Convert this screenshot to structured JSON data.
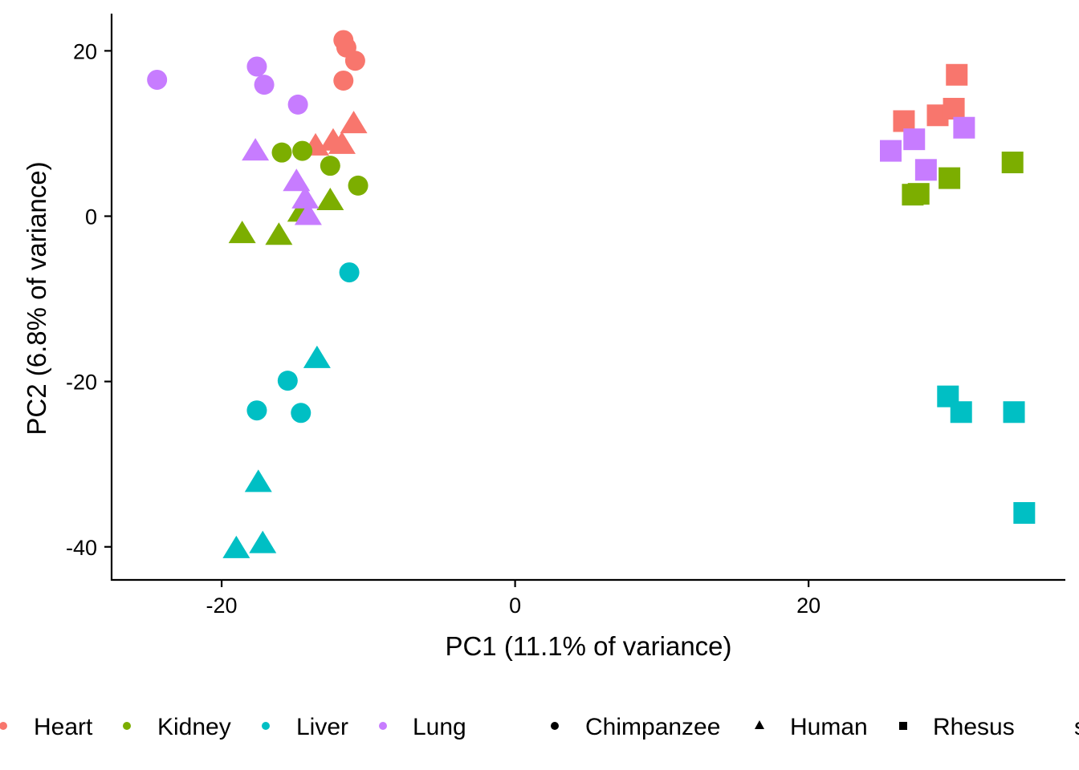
{
  "chart_data": {
    "type": "scatter",
    "xlabel": "PC1 (11.1% of variance)",
    "ylabel": "PC2 (6.8% of variance)",
    "xlim": [
      -27.5,
      37.5
    ],
    "ylim": [
      -44,
      24.5
    ],
    "x_ticks": [
      -20,
      0,
      20
    ],
    "y_ticks": [
      20,
      0,
      -20,
      -40
    ],
    "x_tick_labels": [
      "-20",
      "0",
      "20"
    ],
    "y_tick_labels": [
      "20",
      "0",
      "-20",
      "-40"
    ],
    "grid": false,
    "legend_position": "bottom",
    "tissues": [
      {
        "name": "Heart",
        "color": "#F8766D"
      },
      {
        "name": "Kidney",
        "color": "#7CAE00"
      },
      {
        "name": "Liver",
        "color": "#00BFC4"
      },
      {
        "name": "Lung",
        "color": "#C77CFF"
      }
    ],
    "species": [
      {
        "name": "Chimpanzee",
        "shape": "circle"
      },
      {
        "name": "Human",
        "shape": "triangle"
      },
      {
        "name": "Rhesus",
        "shape": "square"
      }
    ],
    "legend_trailing_text": "s",
    "points": [
      {
        "x": -11.7,
        "y": 21.3,
        "tissue": "Heart",
        "species": "Chimpanzee"
      },
      {
        "x": -11.5,
        "y": 20.4,
        "tissue": "Heart",
        "species": "Chimpanzee"
      },
      {
        "x": -10.9,
        "y": 18.8,
        "tissue": "Heart",
        "species": "Chimpanzee"
      },
      {
        "x": -11.7,
        "y": 16.4,
        "tissue": "Heart",
        "species": "Chimpanzee"
      },
      {
        "x": -13.6,
        "y": 8.4,
        "tissue": "Heart",
        "species": "Human"
      },
      {
        "x": -12.4,
        "y": 9.0,
        "tissue": "Heart",
        "species": "Human"
      },
      {
        "x": -11.8,
        "y": 8.6,
        "tissue": "Heart",
        "species": "Human"
      },
      {
        "x": -11.0,
        "y": 11.1,
        "tissue": "Heart",
        "species": "Human"
      },
      {
        "x": 26.5,
        "y": 11.5,
        "tissue": "Heart",
        "species": "Rhesus"
      },
      {
        "x": 28.8,
        "y": 12.2,
        "tissue": "Heart",
        "species": "Rhesus"
      },
      {
        "x": 29.9,
        "y": 13.0,
        "tissue": "Heart",
        "species": "Rhesus"
      },
      {
        "x": 30.1,
        "y": 17.1,
        "tissue": "Heart",
        "species": "Rhesus"
      },
      {
        "x": -15.9,
        "y": 7.7,
        "tissue": "Kidney",
        "species": "Chimpanzee"
      },
      {
        "x": -14.5,
        "y": 7.9,
        "tissue": "Kidney",
        "species": "Chimpanzee"
      },
      {
        "x": -12.6,
        "y": 6.1,
        "tissue": "Kidney",
        "species": "Chimpanzee"
      },
      {
        "x": -10.7,
        "y": 3.7,
        "tissue": "Kidney",
        "species": "Chimpanzee"
      },
      {
        "x": -18.6,
        "y": -2.2,
        "tissue": "Kidney",
        "species": "Human"
      },
      {
        "x": -16.1,
        "y": -2.4,
        "tissue": "Kidney",
        "species": "Human"
      },
      {
        "x": -14.6,
        "y": 0.4,
        "tissue": "Kidney",
        "species": "Human"
      },
      {
        "x": -12.6,
        "y": 1.8,
        "tissue": "Kidney",
        "species": "Human"
      },
      {
        "x": 27.1,
        "y": 2.6,
        "tissue": "Kidney",
        "species": "Rhesus"
      },
      {
        "x": 27.5,
        "y": 2.7,
        "tissue": "Kidney",
        "species": "Rhesus"
      },
      {
        "x": 29.6,
        "y": 4.6,
        "tissue": "Kidney",
        "species": "Rhesus"
      },
      {
        "x": 33.9,
        "y": 6.5,
        "tissue": "Kidney",
        "species": "Rhesus"
      },
      {
        "x": -11.3,
        "y": -6.8,
        "tissue": "Liver",
        "species": "Chimpanzee"
      },
      {
        "x": -15.5,
        "y": -19.9,
        "tissue": "Liver",
        "species": "Chimpanzee"
      },
      {
        "x": -17.6,
        "y": -23.5,
        "tissue": "Liver",
        "species": "Chimpanzee"
      },
      {
        "x": -14.6,
        "y": -23.8,
        "tissue": "Liver",
        "species": "Chimpanzee"
      },
      {
        "x": -13.5,
        "y": -17.3,
        "tissue": "Liver",
        "species": "Human"
      },
      {
        "x": -17.5,
        "y": -32.3,
        "tissue": "Liver",
        "species": "Human"
      },
      {
        "x": -17.2,
        "y": -39.7,
        "tissue": "Liver",
        "species": "Human"
      },
      {
        "x": -19.0,
        "y": -40.3,
        "tissue": "Liver",
        "species": "Human"
      },
      {
        "x": 29.5,
        "y": -21.8,
        "tissue": "Liver",
        "species": "Rhesus"
      },
      {
        "x": 30.4,
        "y": -23.7,
        "tissue": "Liver",
        "species": "Rhesus"
      },
      {
        "x": 34.0,
        "y": -23.7,
        "tissue": "Liver",
        "species": "Rhesus"
      },
      {
        "x": 34.7,
        "y": -35.9,
        "tissue": "Liver",
        "species": "Rhesus"
      },
      {
        "x": -24.4,
        "y": 16.5,
        "tissue": "Lung",
        "species": "Chimpanzee"
      },
      {
        "x": -17.6,
        "y": 18.1,
        "tissue": "Lung",
        "species": "Chimpanzee"
      },
      {
        "x": -17.1,
        "y": 15.9,
        "tissue": "Lung",
        "species": "Chimpanzee"
      },
      {
        "x": -14.8,
        "y": 13.5,
        "tissue": "Lung",
        "species": "Chimpanzee"
      },
      {
        "x": -17.7,
        "y": 7.8,
        "tissue": "Lung",
        "species": "Human"
      },
      {
        "x": -14.9,
        "y": 4.1,
        "tissue": "Lung",
        "species": "Human"
      },
      {
        "x": -14.3,
        "y": 2.0,
        "tissue": "Lung",
        "species": "Human"
      },
      {
        "x": -14.1,
        "y": 0.0,
        "tissue": "Lung",
        "species": "Human"
      },
      {
        "x": 25.6,
        "y": 7.9,
        "tissue": "Lung",
        "species": "Rhesus"
      },
      {
        "x": 27.2,
        "y": 9.3,
        "tissue": "Lung",
        "species": "Rhesus"
      },
      {
        "x": 28.0,
        "y": 5.6,
        "tissue": "Lung",
        "species": "Rhesus"
      },
      {
        "x": 30.6,
        "y": 10.7,
        "tissue": "Lung",
        "species": "Rhesus"
      }
    ]
  }
}
